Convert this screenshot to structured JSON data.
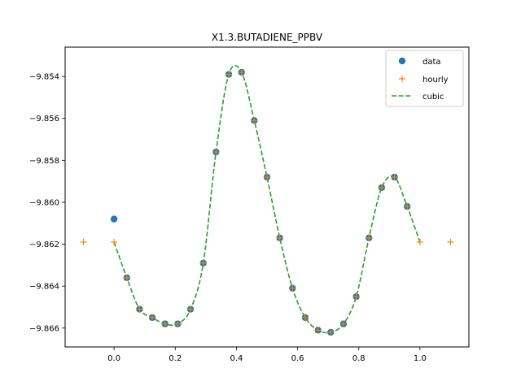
{
  "chart_data": {
    "type": "line",
    "title": "X1.3.BUTADIENE_PPBV",
    "xlabel": "",
    "ylabel": "",
    "xlim": [
      -0.16,
      1.16
    ],
    "ylim": [
      -9.8669,
      -9.8526
    ],
    "x_ticks": [
      0.0,
      0.2,
      0.4,
      0.6,
      0.8,
      1.0
    ],
    "x_tick_labels": [
      "0.0",
      "0.2",
      "0.4",
      "0.6",
      "0.8",
      "1.0"
    ],
    "y_ticks": [
      -9.866,
      -9.864,
      -9.862,
      -9.86,
      -9.858,
      -9.856,
      -9.854
    ],
    "y_tick_labels": [
      "−9.866",
      "−9.864",
      "−9.862",
      "−9.860",
      "−9.858",
      "−9.856",
      "−9.854"
    ],
    "grid": false,
    "legend_position": "top-right",
    "series": [
      {
        "name": "data",
        "style": "marker-circle",
        "color": "#1f77b4",
        "x": [
          0.0,
          0.0417,
          0.0833,
          0.125,
          0.1667,
          0.2083,
          0.25,
          0.2917,
          0.3333,
          0.375,
          0.4167,
          0.4583,
          0.5,
          0.5417,
          0.5833,
          0.625,
          0.6667,
          0.7083,
          0.75,
          0.7917,
          0.8333,
          0.875,
          0.9167,
          0.9583
        ],
        "y": [
          -9.8608,
          -9.8636,
          -9.8651,
          -9.8655,
          -9.8658,
          -9.8658,
          -9.8651,
          -9.8629,
          -9.8576,
          -9.8539,
          -9.8538,
          -9.8561,
          -9.8588,
          -9.8617,
          -9.8641,
          -9.8655,
          -9.8661,
          -9.8662,
          -9.8658,
          -9.8645,
          -9.8617,
          -9.8593,
          -9.8588,
          -9.8602
        ]
      },
      {
        "name": "hourly",
        "style": "marker-plus",
        "color": "#ff7f0e",
        "x": [
          -0.1,
          0.0,
          0.0417,
          0.0833,
          0.125,
          0.1667,
          0.2083,
          0.25,
          0.2917,
          0.3333,
          0.375,
          0.4167,
          0.4583,
          0.5,
          0.5417,
          0.5833,
          0.625,
          0.6667,
          0.7083,
          0.75,
          0.7917,
          0.8333,
          0.875,
          0.9167,
          0.9583,
          1.0,
          1.1
        ],
        "y": [
          -9.8619,
          -9.8619,
          -9.8636,
          -9.8651,
          -9.8655,
          -9.8658,
          -9.8658,
          -9.8651,
          -9.8629,
          -9.8576,
          -9.8539,
          -9.8538,
          -9.8561,
          -9.8588,
          -9.8617,
          -9.8641,
          -9.8655,
          -9.8661,
          -9.8662,
          -9.8658,
          -9.8645,
          -9.8617,
          -9.8593,
          -9.8588,
          -9.8602,
          -9.8619,
          -9.8619
        ]
      },
      {
        "name": "cubic",
        "style": "dashed-line",
        "color": "#2ca02c",
        "x": [
          0.0,
          0.0417,
          0.0833,
          0.125,
          0.1667,
          0.2083,
          0.25,
          0.2917,
          0.3333,
          0.375,
          0.4167,
          0.4583,
          0.5,
          0.5417,
          0.5833,
          0.625,
          0.6667,
          0.7083,
          0.75,
          0.7917,
          0.8333,
          0.875,
          0.9167,
          0.9583,
          1.0
        ],
        "y": [
          -9.8619,
          -9.8636,
          -9.8651,
          -9.8655,
          -9.8658,
          -9.8658,
          -9.8651,
          -9.8629,
          -9.8576,
          -9.8539,
          -9.8538,
          -9.8561,
          -9.8588,
          -9.8617,
          -9.8641,
          -9.8655,
          -9.8661,
          -9.8662,
          -9.8658,
          -9.8645,
          -9.8617,
          -9.8593,
          -9.8588,
          -9.8602,
          -9.8619
        ]
      }
    ]
  }
}
